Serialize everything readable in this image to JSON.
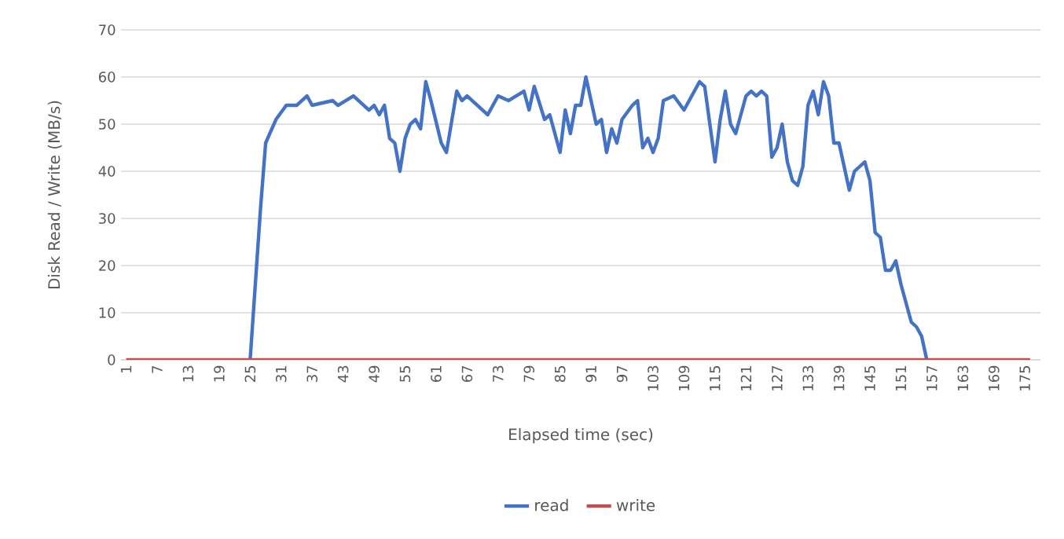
{
  "chart_data": {
    "type": "line",
    "xlabel": "Elapsed time (sec)",
    "ylabel": "Disk Read / Write (MB/s)",
    "xlim": [
      0,
      178
    ],
    "ylim": [
      0,
      70
    ],
    "xticks": [
      1,
      7,
      13,
      19,
      25,
      31,
      37,
      43,
      49,
      55,
      61,
      67,
      73,
      79,
      85,
      91,
      97,
      103,
      109,
      115,
      121,
      127,
      133,
      139,
      145,
      151,
      157,
      163,
      169,
      175
    ],
    "yticks": [
      0,
      10,
      20,
      30,
      40,
      50,
      60,
      70
    ],
    "grid": "y",
    "legend": "bottom",
    "marker": "none",
    "line_style": "solid",
    "series": [
      {
        "name": "read",
        "color": "#4472c4",
        "x": [
          25,
          26,
          27,
          28,
          30,
          32,
          34,
          36,
          37,
          41,
          42,
          45,
          48,
          49,
          50,
          51,
          52,
          53,
          54,
          55,
          56,
          57,
          58,
          59,
          60,
          62,
          63,
          65,
          66,
          67,
          71,
          72,
          73,
          75,
          78,
          79,
          80,
          82,
          83,
          85,
          86,
          87,
          88,
          89,
          90,
          92,
          93,
          94,
          95,
          96,
          97,
          99,
          100,
          101,
          102,
          103,
          104,
          105,
          107,
          109,
          112,
          113,
          115,
          116,
          117,
          118,
          119,
          121,
          122,
          123,
          124,
          125,
          126,
          127,
          128,
          129,
          130,
          131,
          132,
          133,
          134,
          135,
          136,
          137,
          138,
          139,
          141,
          142,
          143,
          144,
          145,
          146,
          147,
          148,
          149,
          150,
          151,
          152,
          153,
          154,
          155,
          156
        ],
        "values": [
          0,
          16,
          32,
          46,
          51,
          54,
          54,
          56,
          54,
          55,
          54,
          56,
          53,
          54,
          52,
          54,
          47,
          46,
          40,
          47,
          50,
          51,
          49,
          59,
          55,
          46,
          44,
          57,
          55,
          56,
          52,
          54,
          56,
          55,
          57,
          53,
          58,
          51,
          52,
          44,
          53,
          48,
          54,
          54,
          60,
          50,
          51,
          44,
          49,
          46,
          51,
          54,
          55,
          45,
          47,
          44,
          47,
          55,
          56,
          53,
          59,
          58,
          42,
          51,
          57,
          50,
          48,
          56,
          57,
          56,
          57,
          56,
          43,
          45,
          50,
          42,
          38,
          37,
          41,
          54,
          57,
          52,
          59,
          56,
          46,
          46,
          36,
          40,
          41,
          42,
          38,
          27,
          26,
          19,
          19,
          21,
          16,
          12,
          8,
          7,
          5,
          0
        ]
      },
      {
        "name": "write",
        "color": "#c0504d",
        "x": [
          1,
          176
        ],
        "values": [
          0,
          0
        ]
      }
    ]
  }
}
